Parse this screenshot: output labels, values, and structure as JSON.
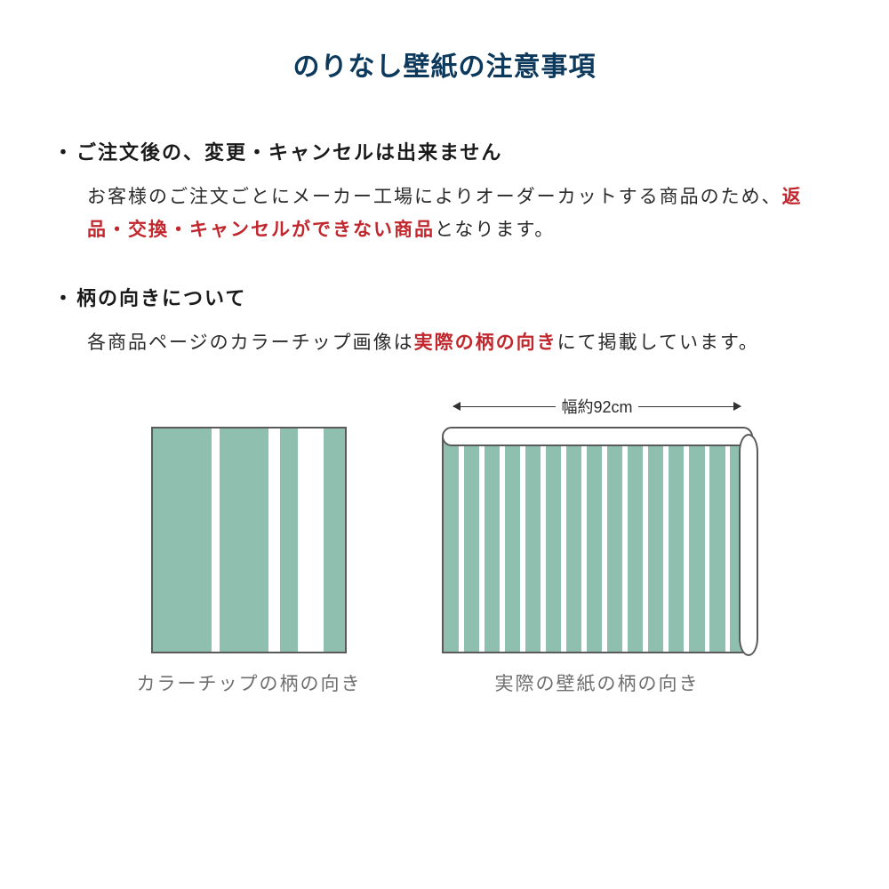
{
  "colors": {
    "title": "#0d3a5c",
    "heading": "#1a1a1a",
    "body": "#2b2b2b",
    "highlight": "#c1272d",
    "caption": "#6e6e6e",
    "stripe_green": "#8fbfae",
    "stripe_white": "#ffffff",
    "diagram_border": "#5a5a5a",
    "arrow": "#333333"
  },
  "title": "のりなし壁紙の注意事項",
  "sections": [
    {
      "heading": "ご注文後の、変更・キャンセルは出来ません",
      "body_parts": [
        {
          "text": "お客様のご注文ごとにメーカー工場によりオーダーカットする商品のため、",
          "highlight": false
        },
        {
          "text": "返品・交換・キャンセルができない商品",
          "highlight": true
        },
        {
          "text": "となります。",
          "highlight": false
        }
      ]
    },
    {
      "heading": "柄の向きについて",
      "body_parts": [
        {
          "text": "各商品ページのカラーチップ画像は",
          "highlight": false
        },
        {
          "text": "実際の柄の向き",
          "highlight": true
        },
        {
          "text": "にて掲載しています。",
          "highlight": false
        }
      ]
    }
  ],
  "diagrams": {
    "left_caption": "カラーチップの柄の向き",
    "right_caption": "実際の壁紙の柄の向き",
    "width_label": "幅約92cm",
    "swatch_stripes": [
      {
        "w": 31,
        "c": "green"
      },
      {
        "w": 4,
        "c": "white"
      },
      {
        "w": 25,
        "c": "green"
      },
      {
        "w": 6,
        "c": "white"
      },
      {
        "w": 9,
        "c": "green"
      },
      {
        "w": 13,
        "c": "white"
      },
      {
        "w": 12,
        "c": "green"
      }
    ],
    "roll_stripe_count": 15
  }
}
